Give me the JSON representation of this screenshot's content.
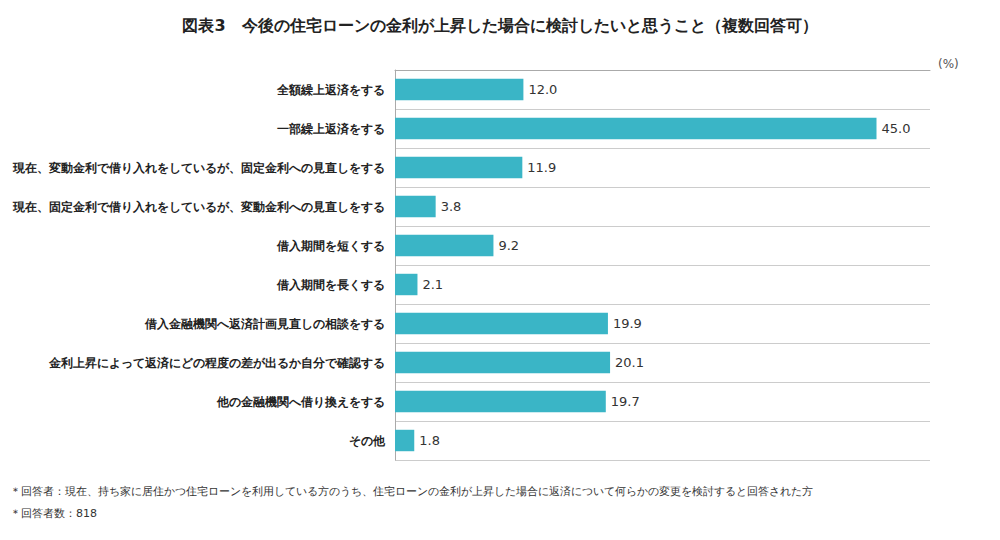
{
  "chart_data": {
    "type": "bar",
    "orientation": "horizontal",
    "title": "図表3　今後の住宅ローンの金利が上昇した場合に検討したいと思うこと（複数回答可）",
    "xlabel": "(%)",
    "categories": [
      "全額繰上返済をする",
      "一部繰上返済をする",
      "現在、変動金利で借り入れをしているが、固定金利への見直しをする",
      "現在、固定金利で借り入れをしているが、変動金利への見直しをする",
      "借入期間を短くする",
      "借入期間を長くする",
      "借入金融機関へ返済計画見直しの相談をする",
      "金利上昇によって返済にどの程度の差が出るか自分で確認する",
      "他の金融機関へ借り換えをする",
      "その他"
    ],
    "values": [
      12.0,
      45.0,
      11.9,
      3.8,
      9.2,
      2.1,
      19.9,
      20.1,
      19.7,
      1.8
    ],
    "value_labels": [
      "12.0",
      "45.0",
      "11.9",
      "3.8",
      "9.2",
      "2.1",
      "19.9",
      "20.1",
      "19.7",
      "1.8"
    ],
    "color": "#3ab5c6",
    "xlim": [
      0,
      50
    ],
    "data_labels": true,
    "tick_labels": "y",
    "grid": true,
    "annotations": [
      "＊回答者：現在、持ち家に居住かつ住宅ローンを利用している方のうち、住宅ローンの金利が上昇した場合に返済について何らかの変更を検討すると回答された方",
      "＊回答者数：818"
    ]
  }
}
